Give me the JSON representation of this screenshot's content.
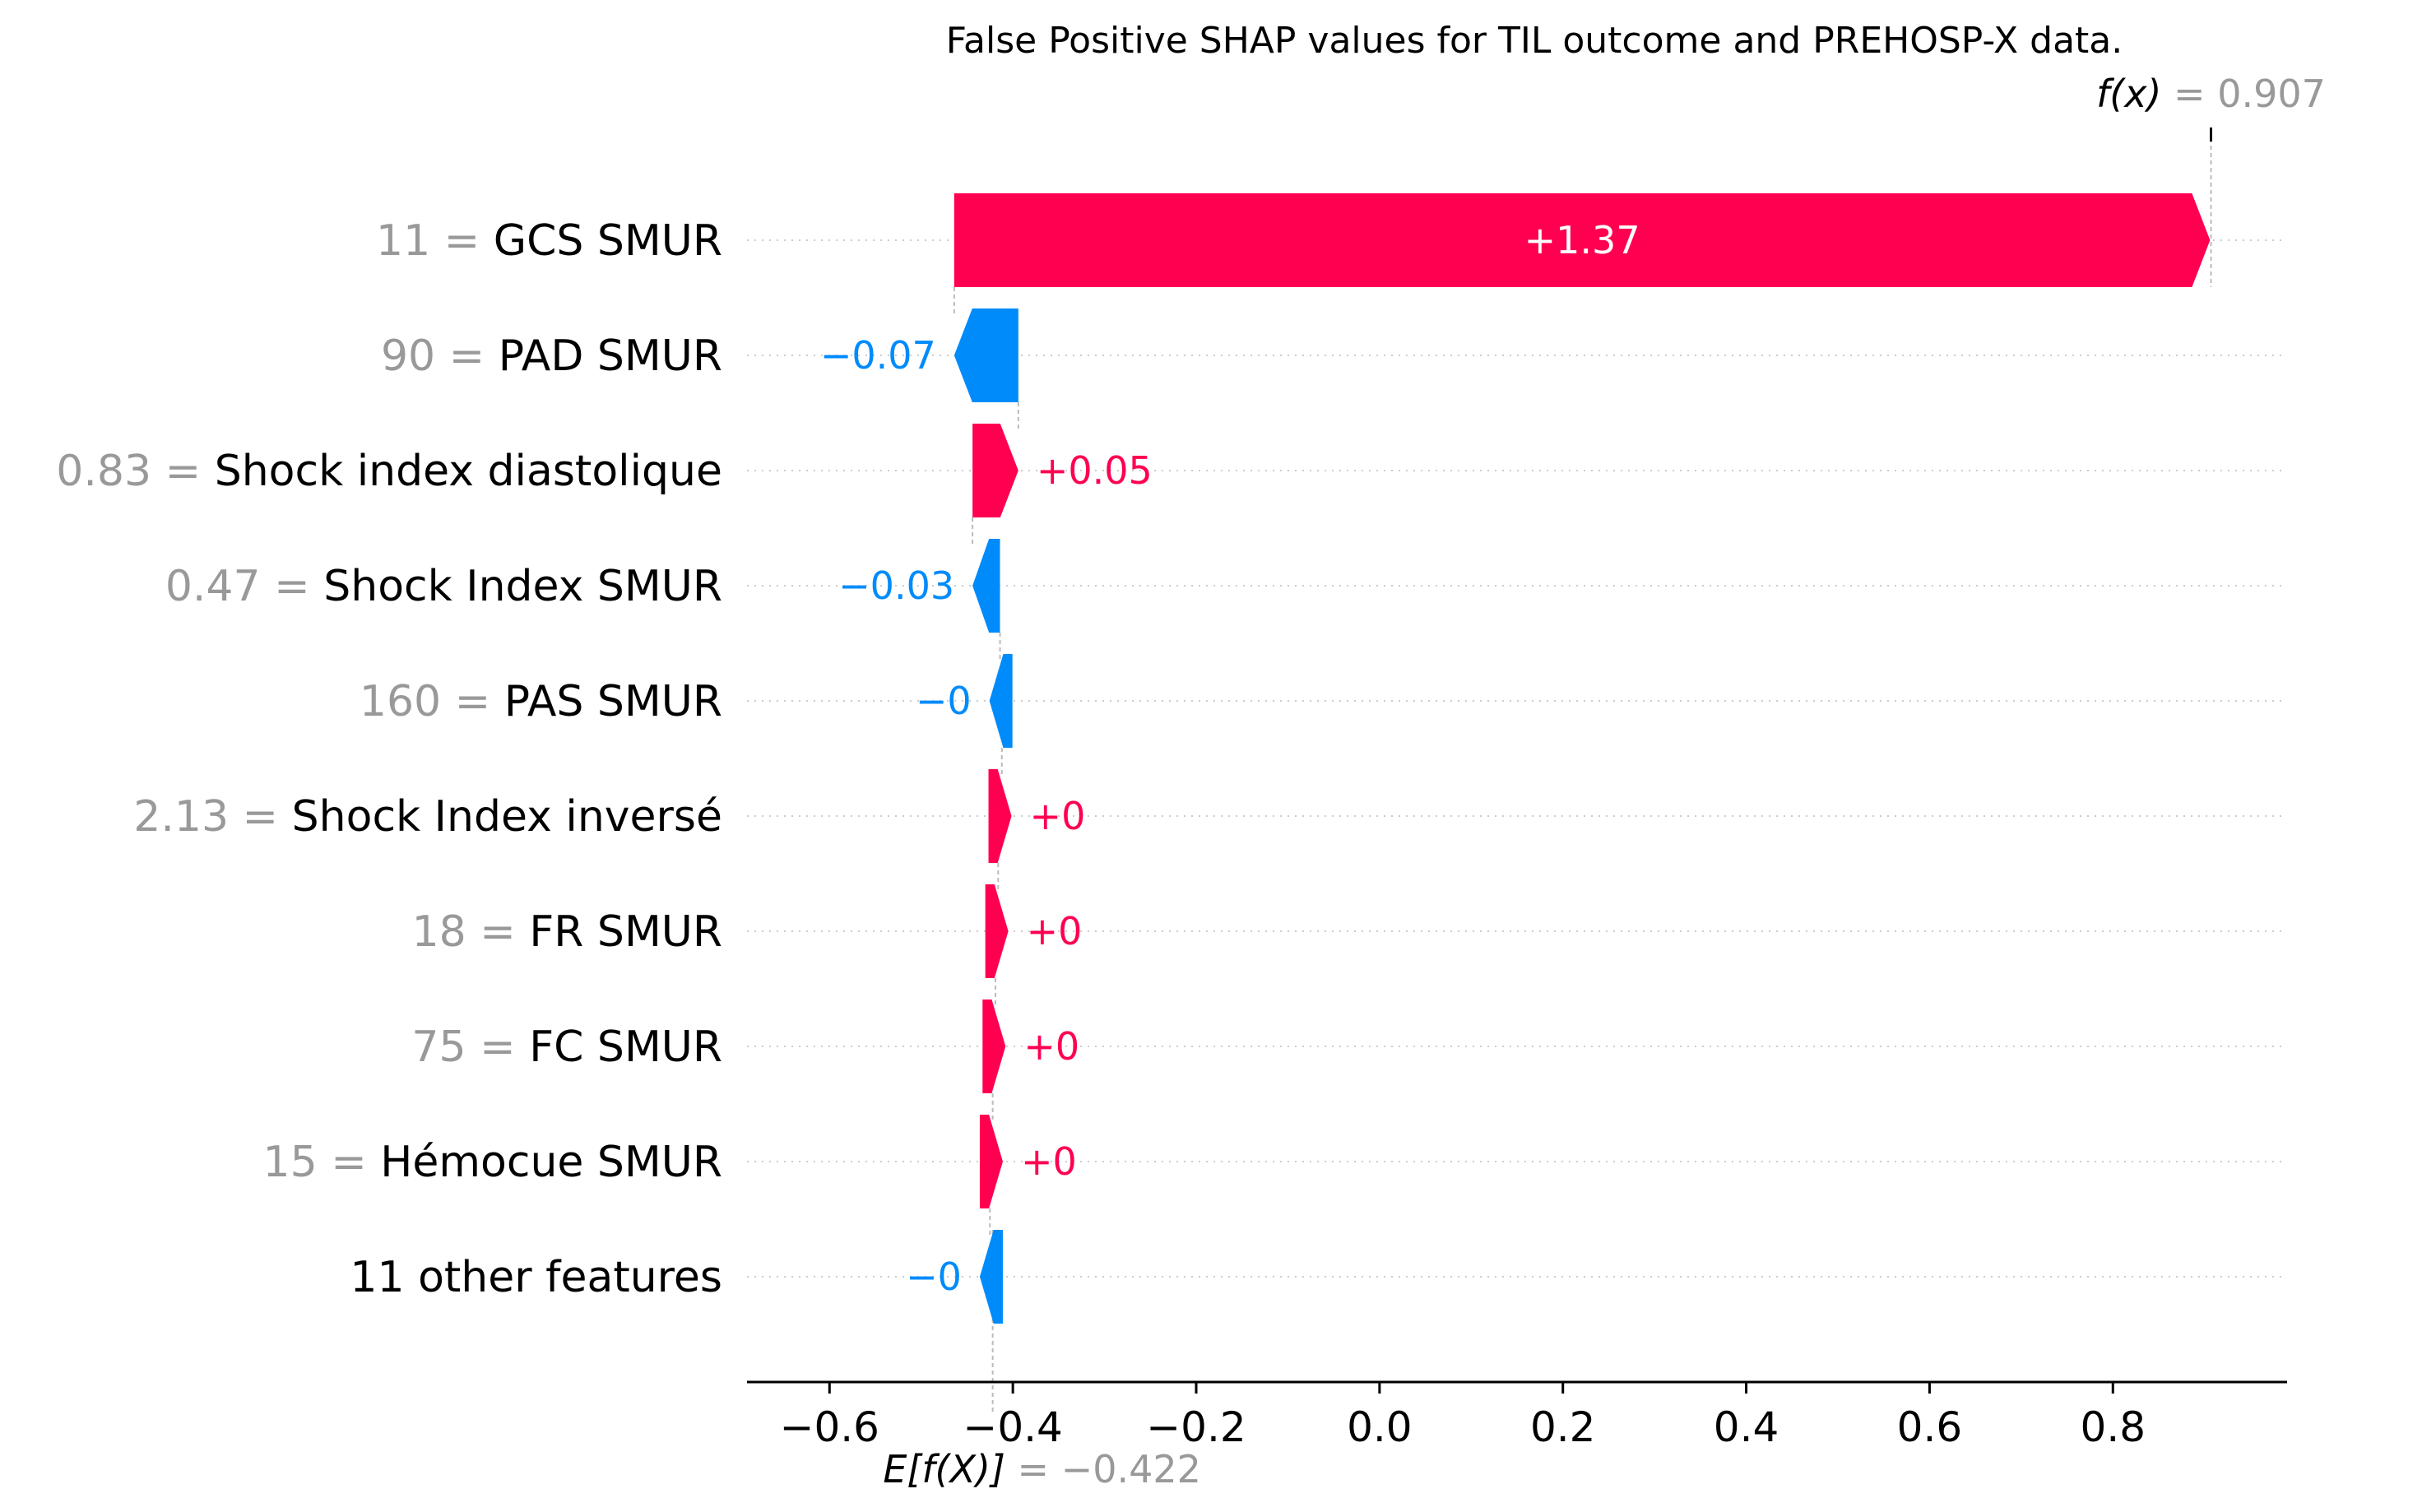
{
  "chart_data": {
    "type": "waterfall",
    "title": "False Positive SHAP values for TIL outcome and PREHOSP-X data.",
    "xlim": [
      -0.69,
      0.99
    ],
    "xticks": [
      -0.6,
      -0.4,
      -0.2,
      0.0,
      0.2,
      0.4,
      0.6,
      0.8
    ],
    "xtick_labels": [
      "−0.6",
      "−0.4",
      "−0.2",
      "0.0",
      "0.2",
      "0.4",
      "0.6",
      "0.8"
    ],
    "base_value": -0.422,
    "base_label_prefix": "E[f(X)]",
    "base_label_value": " = −0.422",
    "output_value": 0.907,
    "output_label_prefix": "f(x)",
    "output_label_value": " = 0.907",
    "positive_color": "#ff0051",
    "negative_color": "#008bfb",
    "value_color": "#999999",
    "features": [
      {
        "value": "11",
        "name": "GCS SMUR",
        "shap": 1.37,
        "label": "+1.37"
      },
      {
        "value": "90",
        "name": "PAD  SMUR",
        "shap": -0.07,
        "label": "−0.07"
      },
      {
        "value": "0.83",
        "name": "Shock index diastolique",
        "shap": 0.05,
        "label": "+0.05"
      },
      {
        "value": "0.47",
        "name": "Shock Index SMUR",
        "shap": -0.03,
        "label": "−0.03"
      },
      {
        "value": "160",
        "name": "PAS  SMUR",
        "shap": -0.002,
        "label": "−0"
      },
      {
        "value": "2.13",
        "name": "Shock Index inversé",
        "shap": 0.004,
        "label": "+0"
      },
      {
        "value": "18",
        "name": "FR SMUR",
        "shap": 0.003,
        "label": "+0"
      },
      {
        "value": "75",
        "name": "FC SMUR",
        "shap": 0.003,
        "label": "+0"
      },
      {
        "value": "15",
        "name": "Hémocue SMUR",
        "shap": 0.003,
        "label": "+0"
      },
      {
        "value": "",
        "name": "11 other features",
        "shap": -0.003,
        "label": "−0"
      }
    ]
  }
}
